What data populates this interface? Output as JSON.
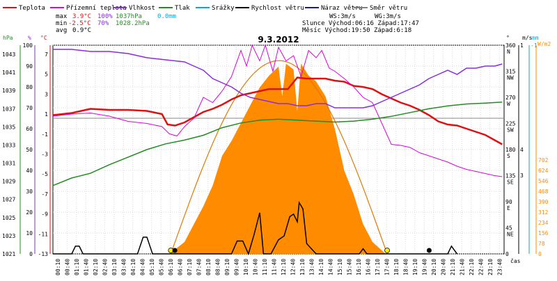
{
  "title": "9.3.2012",
  "legend": [
    {
      "label": "Teplota",
      "color": "#e01010"
    },
    {
      "label": "Přízemní teplota",
      "color": "#e000e0"
    },
    {
      "label": "Vlhkost",
      "color": "#8a2be2"
    },
    {
      "label": "Tlak",
      "color": "#228b22"
    },
    {
      "label": "Srážky",
      "color": "#00aadd"
    },
    {
      "label": "Rychlost větru",
      "color": "#000000"
    },
    {
      "label": "Náraz větru",
      "color": "#1a1a8a"
    },
    {
      "label": "Směr větru",
      "color": "#808080"
    }
  ],
  "stats": {
    "max_label": "max",
    "min_label": "min",
    "avg_label": "avg",
    "max_temp": "3.9°C",
    "max_hum": "100%",
    "max_press": "1037hPa",
    "max_rain": "0.0mm",
    "min_temp": "-2.5°C",
    "min_hum": "70%",
    "min_press": "1028.2hPa",
    "avg_temp": "0.9°C"
  },
  "wind_info": {
    "ws": "WS:3m/s",
    "wg": "WG:3m/s"
  },
  "sun": {
    "line": "Slunce Východ:06:16  Západ:17:47"
  },
  "moon": {
    "line": "Měsíc  Východ:19:50  Západ:6:18"
  },
  "axes": {
    "hpa_unit": "hPa",
    "pct_unit": "%",
    "c_unit": "°C",
    "deg_unit": "°",
    "ms_unit": "m/s",
    "mm_unit": "mm",
    "wm2_unit": "W/m2",
    "time_unit": "čas",
    "hpa_ticks": [
      "1043",
      "1041",
      "1039",
      "1037",
      "1035",
      "1033",
      "1031",
      "1029",
      "1027",
      "1025",
      "1023",
      "1021"
    ],
    "pct_ticks": [
      "100",
      "90",
      "80",
      "70",
      "60",
      "50",
      "40",
      "30",
      "20",
      "10",
      "0"
    ],
    "c_ticks": [
      "7",
      "5",
      "3",
      "1",
      "-1",
      "-3",
      "-5",
      "-7",
      "-9",
      "-11",
      "-13"
    ],
    "deg_ticks": [
      "360",
      "315",
      "270",
      "225",
      "180",
      "135",
      "90",
      "45",
      "0"
    ],
    "dir_ticks": [
      "N",
      "NW",
      "W",
      "SW",
      "S",
      "SE",
      "E",
      "NE"
    ],
    "ms_ticks": [
      "1",
      "4",
      "3"
    ],
    "mm_ticks": [
      "-1"
    ],
    "wm2_ticks": [
      "702",
      "624",
      "546",
      "468",
      "390",
      "312",
      "234",
      "156",
      "78",
      "0"
    ]
  },
  "chart_data": {
    "type": "line",
    "title": "9.3.2012",
    "x_unit": "čas",
    "x_ticks": [
      "00:10",
      "00:40",
      "01:10",
      "01:40",
      "02:10",
      "02:40",
      "03:10",
      "03:40",
      "04:10",
      "04:40",
      "05:10",
      "05:40",
      "06:10",
      "06:40",
      "07:10",
      "07:40",
      "08:10",
      "08:40",
      "09:10",
      "09:40",
      "10:10",
      "10:40",
      "11:10",
      "11:40",
      "12:10",
      "12:40",
      "13:10",
      "13:40",
      "14:10",
      "14:40",
      "15:10",
      "15:40",
      "16:10",
      "16:40",
      "17:10",
      "17:40",
      "18:10",
      "18:40",
      "19:10",
      "19:40",
      "20:10",
      "20:40",
      "21:10",
      "21:40",
      "22:10",
      "22:40",
      "23:10",
      "23:40"
    ],
    "y_left_range_c": [
      -13,
      7
    ],
    "y_left_range_hpa": [
      1021,
      1043
    ],
    "y_left_range_pct": [
      0,
      100
    ],
    "series": [
      {
        "name": "Teplota",
        "unit": "°C",
        "color": "#e01010",
        "points": [
          [
            0,
            0.3
          ],
          [
            1,
            0.5
          ],
          [
            2,
            0.9
          ],
          [
            3,
            0.8
          ],
          [
            4,
            0.8
          ],
          [
            5,
            0.7
          ],
          [
            5.8,
            0.4
          ],
          [
            6.1,
            -0.6
          ],
          [
            6.5,
            -0.7
          ],
          [
            7,
            -0.4
          ],
          [
            7.5,
            0.1
          ],
          [
            8,
            0.6
          ],
          [
            8.5,
            0.9
          ],
          [
            9,
            1.3
          ],
          [
            9.5,
            1.8
          ],
          [
            10,
            2.2
          ],
          [
            10.5,
            2.4
          ],
          [
            11,
            2.6
          ],
          [
            11.5,
            2.8
          ],
          [
            12,
            2.8
          ],
          [
            12.5,
            2.8
          ],
          [
            13,
            3.9
          ],
          [
            13.5,
            3.8
          ],
          [
            14,
            3.8
          ],
          [
            14.5,
            3.8
          ],
          [
            15,
            3.6
          ],
          [
            15.5,
            3.5
          ],
          [
            16,
            3.1
          ],
          [
            16.5,
            3.0
          ],
          [
            17,
            2.8
          ],
          [
            17.5,
            2.3
          ],
          [
            18,
            1.9
          ],
          [
            18.5,
            1.5
          ],
          [
            19,
            1.2
          ],
          [
            19.5,
            0.8
          ],
          [
            20,
            0.3
          ],
          [
            20.5,
            -0.3
          ],
          [
            21,
            -0.6
          ],
          [
            21.5,
            -0.7
          ],
          [
            22,
            -1.0
          ],
          [
            22.5,
            -1.3
          ],
          [
            23,
            -1.6
          ],
          [
            23.5,
            -2.1
          ],
          [
            23.9,
            -2.5
          ]
        ]
      },
      {
        "name": "Přízemní teplota",
        "unit": "°C",
        "color": "#e000e0",
        "points": [
          [
            0,
            0.2
          ],
          [
            1,
            0.4
          ],
          [
            2,
            0.5
          ],
          [
            3,
            0.2
          ],
          [
            4,
            -0.3
          ],
          [
            5,
            -0.5
          ],
          [
            5.8,
            -0.8
          ],
          [
            6.2,
            -1.5
          ],
          [
            6.6,
            -1.7
          ],
          [
            7,
            -0.8
          ],
          [
            7.5,
            0.0
          ],
          [
            8,
            2.0
          ],
          [
            8.5,
            1.5
          ],
          [
            9,
            2.6
          ],
          [
            9.5,
            4.0
          ],
          [
            10,
            6.5
          ],
          [
            10.3,
            5.0
          ],
          [
            10.6,
            7.0
          ],
          [
            11,
            5.5
          ],
          [
            11.3,
            7.0
          ],
          [
            11.7,
            4.5
          ],
          [
            12,
            6.8
          ],
          [
            12.4,
            5.5
          ],
          [
            12.8,
            6.0
          ],
          [
            13.2,
            4.0
          ],
          [
            13.6,
            6.5
          ],
          [
            14,
            5.8
          ],
          [
            14.3,
            6.5
          ],
          [
            14.7,
            4.8
          ],
          [
            15,
            4.5
          ],
          [
            15.5,
            3.8
          ],
          [
            16,
            3.0
          ],
          [
            16.5,
            2.0
          ],
          [
            17,
            1.5
          ],
          [
            17.5,
            -0.5
          ],
          [
            18,
            -2.5
          ],
          [
            18.5,
            -2.6
          ],
          [
            19,
            -2.8
          ],
          [
            19.5,
            -3.3
          ],
          [
            20,
            -3.6
          ],
          [
            20.5,
            -3.9
          ],
          [
            21,
            -4.2
          ],
          [
            21.5,
            -4.6
          ],
          [
            22,
            -4.9
          ],
          [
            22.5,
            -5.1
          ],
          [
            23,
            -5.3
          ],
          [
            23.5,
            -5.5
          ],
          [
            23.9,
            -5.6
          ]
        ]
      },
      {
        "name": "Vlhkost",
        "unit": "%",
        "color": "#8a2be2",
        "points": [
          [
            0,
            98
          ],
          [
            1,
            98
          ],
          [
            2,
            97
          ],
          [
            3,
            97
          ],
          [
            4,
            96
          ],
          [
            5,
            94
          ],
          [
            6,
            93
          ],
          [
            7,
            92
          ],
          [
            7.5,
            90
          ],
          [
            8,
            88
          ],
          [
            8.5,
            84
          ],
          [
            9,
            82
          ],
          [
            9.5,
            80
          ],
          [
            10,
            77
          ],
          [
            10.5,
            75
          ],
          [
            11,
            74
          ],
          [
            11.5,
            73
          ],
          [
            12,
            72
          ],
          [
            12.5,
            72
          ],
          [
            13,
            71
          ],
          [
            13.5,
            71
          ],
          [
            14,
            72
          ],
          [
            14.5,
            72
          ],
          [
            15,
            70
          ],
          [
            15.5,
            70
          ],
          [
            16,
            70
          ],
          [
            16.5,
            70
          ],
          [
            17,
            71
          ],
          [
            17.5,
            73
          ],
          [
            18,
            75
          ],
          [
            18.5,
            77
          ],
          [
            19,
            79
          ],
          [
            19.5,
            81
          ],
          [
            20,
            84
          ],
          [
            20.5,
            86
          ],
          [
            21,
            88
          ],
          [
            21.5,
            86
          ],
          [
            22,
            89
          ],
          [
            22.5,
            89
          ],
          [
            23,
            90
          ],
          [
            23.5,
            90
          ],
          [
            23.9,
            91
          ]
        ]
      },
      {
        "name": "Tlak",
        "unit": "hPa",
        "color": "#228b22",
        "points": [
          [
            0,
            1028.2
          ],
          [
            1,
            1029.0
          ],
          [
            2,
            1029.5
          ],
          [
            3,
            1030.4
          ],
          [
            4,
            1031.2
          ],
          [
            5,
            1032.0
          ],
          [
            6,
            1032.6
          ],
          [
            7,
            1033.0
          ],
          [
            8,
            1033.5
          ],
          [
            9,
            1034.3
          ],
          [
            10,
            1034.8
          ],
          [
            11,
            1035.1
          ],
          [
            12,
            1035.2
          ],
          [
            13,
            1035.1
          ],
          [
            14,
            1035.0
          ],
          [
            15,
            1034.9
          ],
          [
            16,
            1035.0
          ],
          [
            17,
            1035.2
          ],
          [
            18,
            1035.5
          ],
          [
            19,
            1035.9
          ],
          [
            20,
            1036.3
          ],
          [
            21,
            1036.6
          ],
          [
            22,
            1036.8
          ],
          [
            23,
            1036.9
          ],
          [
            23.9,
            1037.0
          ]
        ]
      },
      {
        "name": "Rychlost větru",
        "unit": "m/s",
        "color": "#000000",
        "points": [
          [
            0,
            0
          ],
          [
            1.0,
            0
          ],
          [
            1.2,
            0.6
          ],
          [
            1.4,
            0.6
          ],
          [
            1.6,
            0
          ],
          [
            4.5,
            0
          ],
          [
            4.8,
            1.3
          ],
          [
            5.0,
            1.3
          ],
          [
            5.3,
            0
          ],
          [
            9.5,
            0
          ],
          [
            9.8,
            1.0
          ],
          [
            10.1,
            1.0
          ],
          [
            10.4,
            0
          ],
          [
            10.7,
            1.5
          ],
          [
            11.0,
            3.2
          ],
          [
            11.2,
            0
          ],
          [
            11.6,
            0
          ],
          [
            12,
            1.1
          ],
          [
            12.3,
            1.4
          ],
          [
            12.6,
            2.9
          ],
          [
            12.8,
            3.1
          ],
          [
            13.0,
            2.5
          ],
          [
            13.1,
            4.0
          ],
          [
            13.3,
            3.5
          ],
          [
            13.5,
            0.8
          ],
          [
            14.0,
            0
          ],
          [
            16.3,
            0
          ],
          [
            16.5,
            0.4
          ],
          [
            16.7,
            0
          ],
          [
            21.0,
            0
          ],
          [
            21.2,
            0.6
          ],
          [
            21.5,
            0
          ]
        ]
      },
      {
        "name": "Solar",
        "unit": "W/m2",
        "color": "#ff8c00",
        "points": [
          [
            6.2,
            0
          ],
          [
            7,
            40
          ],
          [
            8,
            160
          ],
          [
            8.5,
            230
          ],
          [
            9,
            330
          ],
          [
            9.5,
            380
          ],
          [
            10,
            440
          ],
          [
            10.5,
            500
          ],
          [
            11,
            560
          ],
          [
            11.5,
            600
          ],
          [
            12,
            630
          ],
          [
            12.2,
            530
          ],
          [
            12.4,
            640
          ],
          [
            12.8,
            620
          ],
          [
            13.0,
            480
          ],
          [
            13.2,
            640
          ],
          [
            13.6,
            600
          ],
          [
            14,
            580
          ],
          [
            14.5,
            530
          ],
          [
            15,
            420
          ],
          [
            15.5,
            280
          ],
          [
            16,
            200
          ],
          [
            16.5,
            100
          ],
          [
            17,
            40
          ],
          [
            17.7,
            0
          ]
        ]
      }
    ]
  }
}
